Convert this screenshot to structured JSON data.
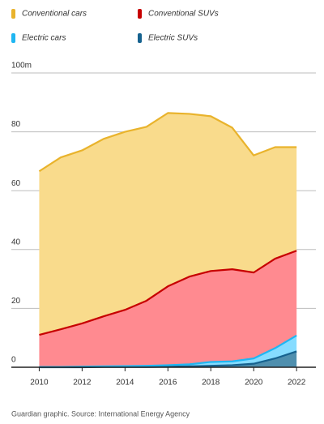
{
  "chart_data": {
    "type": "stacked_area",
    "x": [
      2010,
      2011,
      2012,
      2013,
      2014,
      2015,
      2016,
      2017,
      2018,
      2019,
      2020,
      2021,
      2022
    ],
    "series": [
      {
        "name": "Conventional cars",
        "color": "#e9b32c",
        "area_color": "#f9db8c",
        "values": [
          55.6,
          58.4,
          58.8,
          60.3,
          60.5,
          59.1,
          58.9,
          55.3,
          52.6,
          48.1,
          39.8,
          37.9,
          35.2
        ]
      },
      {
        "name": "Conventional SUVs",
        "color": "#c70000",
        "area_color": "#ff8a90",
        "values": [
          10.9,
          12.8,
          14.7,
          17.0,
          19.1,
          22.1,
          26.8,
          29.8,
          30.9,
          31.3,
          29.2,
          30.4,
          28.8
        ]
      },
      {
        "name": "Electric cars",
        "color": "#1fb6f2",
        "area_color": "#86dcff",
        "values": [
          0.1,
          0.1,
          0.2,
          0.2,
          0.3,
          0.4,
          0.5,
          0.7,
          1.3,
          1.3,
          1.8,
          3.5,
          5.4
        ]
      },
      {
        "name": "Electric SUVs",
        "color": "#16628f",
        "area_color": "#4f8fae",
        "values": [
          0,
          0,
          0,
          0.1,
          0.1,
          0.1,
          0.2,
          0.3,
          0.5,
          0.7,
          1.2,
          3.0,
          5.4
        ]
      }
    ],
    "xlim": [
      2008.7,
      2022.9
    ],
    "ylim": [
      0,
      100
    ],
    "xticks": [
      2010,
      2012,
      2014,
      2016,
      2018,
      2020,
      2022
    ],
    "yticks": [
      0,
      20,
      40,
      60,
      80,
      {
        "value": 100,
        "label": "100m"
      }
    ],
    "grid": true,
    "source": "Guardian graphic. Source: International Energy Agency"
  }
}
